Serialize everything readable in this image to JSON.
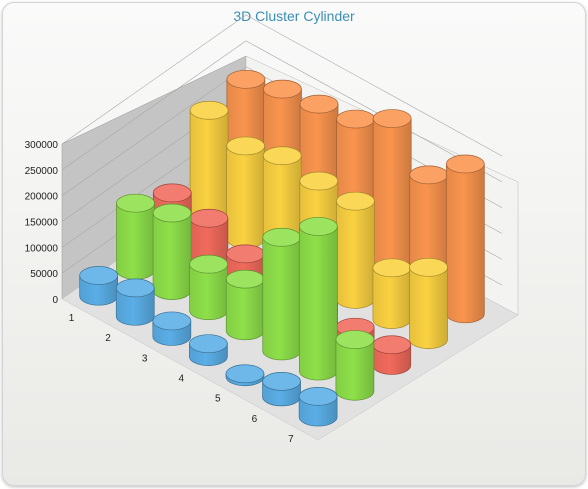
{
  "chart_data": {
    "type": "bar",
    "style": "3d-cluster-cylinder",
    "title": "3D Cluster Cylinder",
    "categories": [
      "1",
      "2",
      "3",
      "4",
      "5",
      "6",
      "7"
    ],
    "ylim": [
      0,
      300000
    ],
    "yticks": [
      "0",
      "50000",
      "100000",
      "150000",
      "200000",
      "250000",
      "300000"
    ],
    "grid": true,
    "legend": "none",
    "series": [
      {
        "color": "#5aaee6",
        "values": [
          40000,
          55000,
          30000,
          25000,
          5000,
          30000,
          40000
        ]
      },
      {
        "color": "#8ee04a",
        "values": [
          130000,
          150000,
          90000,
          100000,
          220000,
          280000,
          100000
        ]
      },
      {
        "color": "#f16a5c",
        "values": [
          100000,
          90000,
          60000,
          50000,
          40000,
          35000,
          40000
        ]
      },
      {
        "color": "#fad141",
        "values": [
          210000,
          180000,
          200000,
          190000,
          190000,
          100000,
          140000
        ]
      },
      {
        "color": "#f9944e",
        "values": [
          220000,
          240000,
          250000,
          260000,
          300000,
          230000,
          290000
        ]
      }
    ]
  }
}
